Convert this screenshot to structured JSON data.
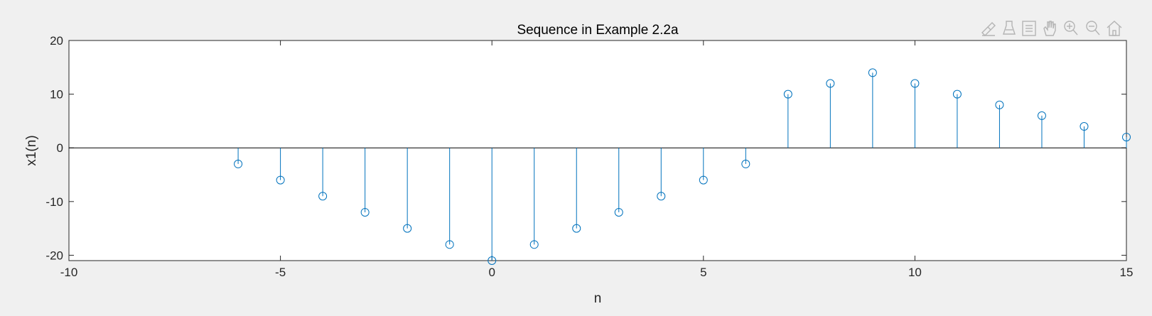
{
  "toolbar": {
    "icons": [
      "brush-icon",
      "data-tips-icon",
      "legend-icon",
      "pan-icon",
      "zoom-in-icon",
      "zoom-out-icon",
      "home-icon"
    ]
  },
  "chart_data": {
    "type": "stem",
    "title": "Sequence in Example 2.2a",
    "xlabel": "n",
    "ylabel": "x1(n)",
    "xlim": [
      -10,
      15
    ],
    "ylim": [
      -21,
      20
    ],
    "xticks": [
      -10,
      -5,
      0,
      5,
      10,
      15
    ],
    "yticks": [
      -20,
      -10,
      0,
      10,
      20
    ],
    "xtick_labels": [
      "-10",
      "-5",
      "0",
      "5",
      "10",
      "15"
    ],
    "ytick_labels": [
      "-20",
      "-10",
      "0",
      "10",
      "20"
    ],
    "grid": false,
    "baseline": 0,
    "color": "#0072bd",
    "series": [
      {
        "x": [
          -6,
          -5,
          -4,
          -3,
          -2,
          -1,
          0,
          1,
          2,
          3,
          4,
          5,
          6,
          7,
          8,
          9,
          10,
          11,
          12,
          13,
          14,
          15
        ],
        "values": [
          -3,
          -6,
          -9,
          -12,
          -15,
          -18,
          -21,
          -18,
          -15,
          -12,
          -9,
          -6,
          -3,
          10,
          12,
          14,
          12,
          10,
          8,
          6,
          4,
          2
        ]
      }
    ]
  }
}
